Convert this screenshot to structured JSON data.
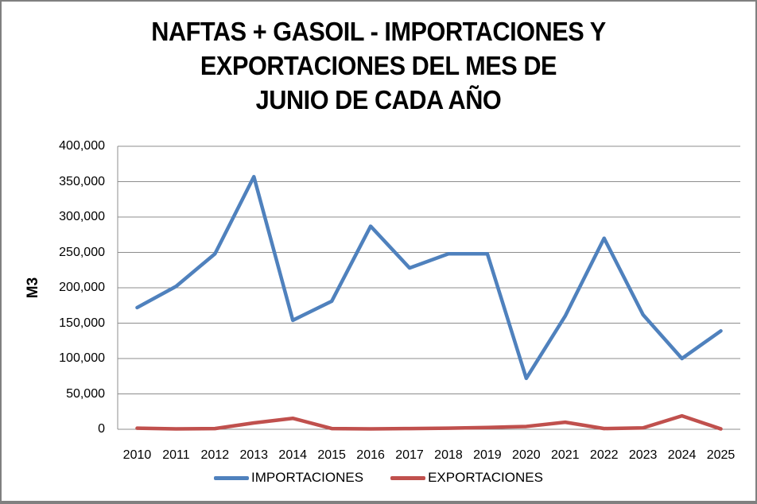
{
  "frame": {
    "background": "#FFFFFF",
    "border_color": "#808080"
  },
  "colors": {
    "gridline": "#8C8C8C",
    "axis": "#8C8C8C",
    "title": "#000000",
    "tick_label": "#000000",
    "importaciones": "#4F81BD",
    "exportaciones": "#C0504D"
  },
  "chart_data": {
    "type": "line",
    "title": "NAFTAS + GASOIL - IMPORTACIONES Y EXPORTACIONES DEL MES DE JUNIO DE CADA AÑO",
    "title_lines": [
      "NAFTAS + GASOIL - IMPORTACIONES Y",
      "EXPORTACIONES DEL MES DE",
      "JUNIO DE CADA AÑO"
    ],
    "xlabel": "",
    "ylabel": "M3",
    "categories": [
      "2010",
      "2011",
      "2012",
      "2013",
      "2014",
      "2015",
      "2016",
      "2017",
      "2018",
      "2019",
      "2020",
      "2021",
      "2022",
      "2023",
      "2024",
      "2025"
    ],
    "series": [
      {
        "name": "IMPORTACIONES",
        "color": "#4F81BD",
        "values": [
          172000,
          202000,
          248000,
          357000,
          154000,
          181000,
          287000,
          228000,
          248000,
          248000,
          72000,
          160000,
          270000,
          162000,
          100000,
          139000
        ]
      },
      {
        "name": "EXPORTACIONES",
        "color": "#C0504D",
        "values": [
          1500,
          500,
          1000,
          9000,
          15500,
          1000,
          500,
          1000,
          1500,
          2500,
          4000,
          10000,
          1000,
          2000,
          19000,
          500
        ]
      }
    ],
    "ylim": [
      0,
      400000
    ],
    "ytick_step": 50000,
    "ytick_labels": [
      "0",
      "50,000",
      "100,000",
      "150,000",
      "200,000",
      "250,000",
      "300,000",
      "350,000",
      "400,000"
    ],
    "grid": "horizontal",
    "legend_position": "bottom"
  }
}
